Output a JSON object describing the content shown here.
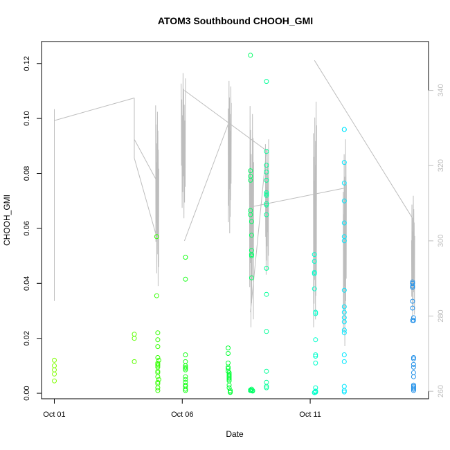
{
  "chart_data": {
    "type": "scatter",
    "title": "ATOM3 Southbound CHOOH_GMI",
    "xlabel": "Date",
    "ylabel": "CHOOH_GMI",
    "x_ticks": [
      {
        "date": "2016-10-01",
        "label": "Oct 01"
      },
      {
        "date": "2016-10-06",
        "label": "Oct 06"
      },
      {
        "date": "2016-10-11",
        "label": "Oct 11"
      }
    ],
    "xlim": [
      "2016-09-30T12:00",
      "2016-10-15T15:00"
    ],
    "y_ticks": [
      "0.00",
      "0.02",
      "0.04",
      "0.06",
      "0.08",
      "0.10",
      "0.12"
    ],
    "ylim": [
      -0.002,
      0.128
    ],
    "y2_ticks": [
      "260",
      "280",
      "300",
      "320",
      "340"
    ],
    "y2lim": [
      258,
      353
    ],
    "grid": false,
    "point_series": [
      {
        "date": "2016-10-01",
        "color": "#80ff00",
        "x_hours": [
          0,
          0,
          0,
          0,
          0
        ],
        "values": [
          0.012,
          0.01,
          0.0085,
          0.007,
          0.0045
        ]
      },
      {
        "date": "2016-10-04",
        "color": "#5cff00",
        "x_hours": [
          3,
          3,
          3
        ],
        "values": [
          0.0215,
          0.02,
          0.0115
        ]
      },
      {
        "date": "2016-10-05",
        "color": "#33ff00",
        "x_hours": [
          0,
          0,
          1,
          1,
          1,
          1,
          2,
          1,
          1,
          1,
          1,
          1,
          1,
          1,
          2,
          1,
          1,
          1,
          1
        ],
        "values": [
          0.057,
          0.0355,
          0.022,
          0.0195,
          0.017,
          0.013,
          0.012,
          0.011,
          0.0105,
          0.01,
          0.0095,
          0.008,
          0.0075,
          0.006,
          0.005,
          0.004,
          0.0035,
          0.002,
          0.001
        ]
      },
      {
        "date": "2016-10-06",
        "color": "#19ff19",
        "x_hours": [
          3,
          3,
          3,
          3,
          3,
          3,
          3,
          3,
          3,
          3,
          3,
          3,
          3,
          3,
          3
        ],
        "values": [
          0.0495,
          0.0415,
          0.014,
          0.0115,
          0.01,
          0.0095,
          0.009,
          0.0085,
          0.006,
          0.005,
          0.004,
          0.003,
          0.0025,
          0.0015,
          0.001
        ]
      },
      {
        "date": "2016-10-07",
        "color": "#00ff33",
        "x_hours": [
          19,
          19,
          19,
          19,
          19,
          19,
          20,
          20,
          20,
          20,
          20,
          20,
          20,
          20,
          20,
          21,
          21,
          21
        ],
        "values": [
          0.0165,
          0.0145,
          0.011,
          0.0095,
          0.009,
          0.008,
          0.0075,
          0.007,
          0.0065,
          0.006,
          0.0055,
          0.005,
          0.0045,
          0.003,
          0.002,
          0.001,
          0.0005,
          0.0003
        ]
      },
      {
        "date": "2016-10-08",
        "color": "#00ff66",
        "x_hours": [
          16,
          16,
          16,
          16,
          16,
          16,
          17,
          17,
          17,
          17,
          17,
          17,
          17,
          17,
          18,
          18,
          16,
          16,
          16
        ],
        "values": [
          0.123,
          0.081,
          0.079,
          0.0775,
          0.0665,
          0.065,
          0.0625,
          0.0575,
          0.052,
          0.0505,
          0.05,
          0.042,
          0.0015,
          0.001,
          0.0008,
          0.001,
          0.001,
          0.001,
          0.0012
        ]
      },
      {
        "date": "2016-10-09",
        "color": "#00ff99",
        "x_hours": [
          7,
          7,
          7,
          7,
          7,
          7,
          7,
          7,
          7,
          7,
          7,
          7,
          7,
          7,
          7,
          7,
          7,
          7
        ],
        "values": [
          0.1135,
          0.088,
          0.083,
          0.0805,
          0.0775,
          0.073,
          0.0725,
          0.072,
          0.069,
          0.0685,
          0.065,
          0.0455,
          0.036,
          0.0225,
          0.008,
          0.004,
          0.0025,
          0.002
        ]
      },
      {
        "date": "2016-10-11",
        "color": "#00ffcc",
        "x_hours": [
          4,
          4,
          4,
          4,
          4,
          5,
          5,
          5,
          5,
          5,
          5,
          5,
          5,
          5,
          5,
          5,
          4,
          4
        ],
        "values": [
          0.0505,
          0.048,
          0.044,
          0.0435,
          0.038,
          0.0295,
          0.029,
          0.0195,
          0.014,
          0.0135,
          0.011,
          0.002,
          0.0005,
          0.0008,
          0.0004,
          0.0006,
          0.0003,
          0.0002
        ]
      },
      {
        "date": "2016-10-12",
        "color": "#00e6ff",
        "x_hours": [
          8,
          8,
          8,
          8,
          8,
          8,
          8,
          8,
          8,
          8,
          8,
          8,
          8,
          8,
          8,
          8,
          8,
          8,
          8,
          8
        ],
        "values": [
          0.096,
          0.096,
          0.084,
          0.0765,
          0.07,
          0.062,
          0.057,
          0.0555,
          0.0375,
          0.0315,
          0.0295,
          0.0275,
          0.026,
          0.023,
          0.022,
          0.014,
          0.0115,
          0.0025,
          0.001,
          0.0005
        ]
      },
      {
        "date": "2016-10-15",
        "color": "#1f8fe8",
        "x_hours": [
          0,
          0,
          0,
          0,
          0,
          0,
          0,
          1,
          1,
          1,
          1,
          1,
          1,
          1,
          1,
          1,
          1,
          1,
          1,
          1
        ],
        "values": [
          0.0405,
          0.04,
          0.039,
          0.0385,
          0.0335,
          0.031,
          0.0265,
          0.0275,
          0.0265,
          0.013,
          0.0125,
          0.0105,
          0.0095,
          0.0075,
          0.006,
          0.003,
          0.0025,
          0.002,
          0.0015,
          0.001
        ]
      }
    ],
    "line_color": "#bdbdbd",
    "line_segments": [
      {
        "from": [
          "2016-10-01T00:00",
          284
        ],
        "to": [
          "2016-10-01T00:00",
          335
        ]
      },
      {
        "from": [
          "2016-10-01T00:00",
          332
        ],
        "to": [
          "2016-10-04T03:00",
          338
        ]
      },
      {
        "from": [
          "2016-10-04T03:00",
          338
        ],
        "to": [
          "2016-10-04T03:00",
          322
        ]
      },
      {
        "from": [
          "2016-10-04T03:00",
          322
        ],
        "to": [
          "2016-10-05T00:00",
          301
        ]
      },
      {
        "from": [
          "2016-10-04T03:00",
          327
        ],
        "to": [
          "2016-10-05T00:00",
          316
        ]
      },
      {
        "from": [
          "2016-10-06T02:00",
          300
        ],
        "to": [
          "2016-10-07T19:00",
          331
        ]
      },
      {
        "from": [
          "2016-10-06T02:00",
          340
        ],
        "to": [
          "2016-10-09T07:00",
          324
        ]
      },
      {
        "from": [
          "2016-10-09T07:00",
          324
        ],
        "to": [
          "2016-10-08T16:00",
          281
        ]
      },
      {
        "from": [
          "2016-10-08T16:00",
          309
        ],
        "to": [
          "2016-10-12T08:00",
          314
        ]
      },
      {
        "from": [
          "2016-10-11T04:00",
          348
        ],
        "to": [
          "2016-10-15T00:00",
          306
        ]
      }
    ],
    "spike_clusters": [
      {
        "start": "2016-10-04T23:00",
        "end": "2016-10-05T02:00",
        "min": 288,
        "max": 336
      },
      {
        "start": "2016-10-05T23:00",
        "end": "2016-10-06T03:00",
        "min": 306,
        "max": 346
      },
      {
        "start": "2016-10-07T19:00",
        "end": "2016-10-07T22:00",
        "min": 302,
        "max": 344
      },
      {
        "start": "2016-10-08T15:00",
        "end": "2016-10-08T19:00",
        "min": 277,
        "max": 338
      },
      {
        "start": "2016-10-09T06:00",
        "end": "2016-10-09T09:00",
        "min": 291,
        "max": 327
      },
      {
        "start": "2016-10-11T03:00",
        "end": "2016-10-11T06:00",
        "min": 277,
        "max": 337
      },
      {
        "start": "2016-10-12T07:00",
        "end": "2016-10-12T10:00",
        "min": 270,
        "max": 327
      },
      {
        "start": "2016-10-14T23:00",
        "end": "2016-10-15T02:00",
        "min": 278,
        "max": 312
      }
    ]
  }
}
